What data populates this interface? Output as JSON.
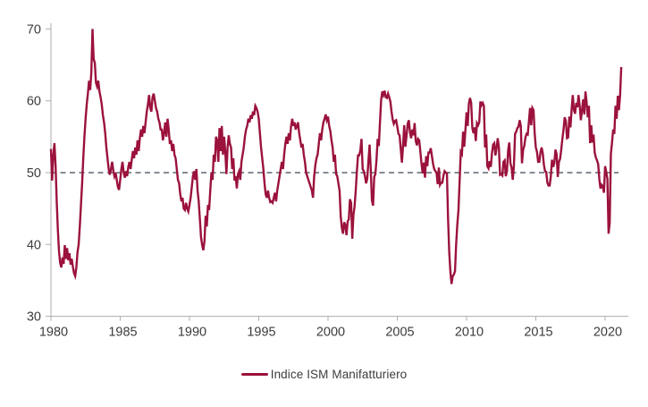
{
  "page": {
    "background": "#ffffff"
  },
  "chart_data": {
    "type": "line",
    "title": "",
    "legend": [
      "Indice ISM Manifatturiero"
    ],
    "legend_position": "bottom-center",
    "grid": false,
    "x_axis": {
      "tick_labels": [
        1980,
        1985,
        1990,
        1995,
        2000,
        2005,
        2010,
        2015,
        2020
      ],
      "range_years": [
        1980,
        2021.6
      ]
    },
    "y_axis": {
      "tick_labels": [
        30,
        40,
        50,
        60,
        70
      ],
      "range": [
        30,
        70
      ]
    },
    "reference_line": {
      "value": 50,
      "style": "dashed",
      "color": "#5b6570"
    },
    "axis_color": "#adadad",
    "label_color": "#3c3c3c",
    "series": [
      {
        "name": "Indice ISM Manifatturiero",
        "color": "#9b123c",
        "start": "1980-01",
        "frequency": "monthly",
        "values": [
          53.3,
          48.9,
          52.3,
          54.1,
          51.0,
          46.0,
          42.0,
          39.0,
          37.4,
          36.8,
          38.2,
          37.3,
          39.9,
          38.0,
          39.5,
          37.8,
          38.8,
          37.2,
          38.0,
          36.9,
          36.0,
          35.6,
          36.8,
          38.9,
          40.0,
          42.5,
          45.5,
          48.5,
          52.0,
          55.0,
          57.5,
          59.5,
          61.0,
          62.8,
          61.5,
          64.0,
          70.0,
          65.8,
          65.3,
          62.5,
          62.0,
          62.8,
          61.3,
          60.5,
          59.5,
          58.0,
          57.0,
          55.5,
          53.5,
          52.0,
          50.5,
          49.7,
          50.5,
          51.5,
          50.3,
          49.5,
          50.0,
          49.0,
          48.0,
          47.6,
          49.0,
          50.5,
          51.5,
          50.0,
          49.3,
          50.2,
          49.5,
          50.8,
          51.5,
          50.5,
          51.8,
          53.0,
          52.0,
          53.5,
          52.5,
          54.5,
          53.0,
          54.8,
          56.0,
          55.0,
          56.5,
          55.5,
          57.0,
          58.5,
          59.5,
          60.8,
          59.0,
          58.5,
          60.5,
          61.0,
          60.0,
          59.0,
          58.5,
          57.5,
          57.0,
          56.0,
          56.0,
          54.5,
          55.5,
          57.0,
          55.0,
          57.5,
          56.0,
          54.0,
          54.5,
          53.0,
          54.0,
          52.5,
          52.0,
          50.5,
          49.0,
          48.5,
          47.0,
          46.0,
          46.5,
          45.0,
          44.8,
          45.8,
          45.0,
          44.6,
          45.5,
          46.5,
          48.0,
          49.5,
          50.2,
          49.0,
          50.5,
          47.5,
          46.0,
          43.5,
          41.0,
          39.9,
          39.2,
          40.5,
          44.0,
          42.5,
          45.5,
          44.8,
          47.5,
          50.0,
          49.0,
          52.5,
          51.5,
          55.0,
          54.5,
          51.5,
          56.2,
          53.0,
          56.5,
          52.5,
          55.0,
          53.0,
          49.8,
          53.5,
          55.2,
          54.0,
          53.5,
          50.5,
          52.0,
          48.9,
          49.5,
          47.8,
          49.8,
          50.2,
          49.0,
          51.5,
          52.5,
          53.5,
          55.0,
          56.0,
          56.5,
          57.5,
          57.0,
          58.0,
          57.5,
          58.5,
          58.0,
          59.3,
          59.0,
          58.5,
          57.5,
          55.5,
          53.5,
          52.0,
          50.5,
          48.5,
          47.0,
          46.5,
          47.5,
          46.5,
          45.9,
          46.0,
          45.8,
          46.5,
          47.2,
          46.0,
          47.5,
          48.5,
          49.5,
          50.5,
          51.5,
          50.5,
          52.5,
          54.0,
          55.0,
          54.0,
          55.5,
          54.5,
          56.5,
          57.5,
          56.5,
          57.0,
          56.0,
          56.5,
          57.0,
          55.5,
          54.5,
          53.5,
          54.0,
          52.5,
          51.5,
          50.0,
          49.5,
          49.0,
          48.5,
          48.0,
          47.5,
          46.5,
          49.5,
          51.0,
          52.0,
          52.5,
          54.0,
          55.5,
          54.5,
          56.0,
          57.0,
          57.5,
          58.1,
          57.3,
          57.8,
          56.5,
          55.8,
          54.5,
          53.5,
          51.5,
          52.5,
          49.8,
          49.5,
          48.5,
          47.5,
          43.9,
          42.3,
          41.5,
          43.1,
          42.7,
          41.3,
          43.2,
          43.5,
          46.3,
          45.8,
          40.8,
          44.1,
          45.3,
          47.5,
          50.2,
          52.4,
          52.4,
          53.1,
          54.7,
          50.5,
          50.2,
          49.5,
          48.5,
          49.2,
          51.6,
          53.9,
          50.5,
          46.2,
          45.4,
          49.4,
          49.8,
          51.8,
          54.7,
          53.7,
          57.0,
          60.1,
          61.3,
          60.8,
          61.4,
          60.5,
          60.4,
          61.0,
          60.5,
          59.9,
          58.5,
          57.4,
          56.8,
          57.2,
          57.3,
          56.4,
          55.4,
          55.2,
          53.3,
          51.4,
          53.8,
          56.6,
          53.6,
          55.1,
          56.8,
          57.3,
          55.6,
          54.8,
          56.0,
          55.2,
          56.9,
          54.4,
          53.8,
          54.7,
          54.5,
          52.9,
          51.2,
          49.9,
          51.4,
          49.3,
          52.3,
          50.9,
          52.8,
          52.8,
          53.4,
          52.3,
          51.2,
          50.5,
          50.2,
          50.0,
          48.4,
          50.7,
          48.3,
          48.6,
          48.6,
          49.6,
          50.2,
          50.0,
          49.9,
          43.5,
          38.9,
          36.2,
          34.5,
          35.6,
          35.8,
          36.3,
          40.1,
          42.8,
          44.8,
          48.9,
          52.9,
          52.6,
          55.7,
          53.6,
          55.9,
          58.4,
          56.5,
          59.6,
          60.4,
          59.7,
          56.2,
          55.5,
          56.3,
          54.4,
          56.9,
          56.6,
          57.0,
          59.9,
          59.4,
          59.7,
          59.3,
          53.5,
          55.3,
          50.9,
          50.6,
          51.6,
          50.8,
          52.7,
          53.9,
          54.1,
          52.4,
          53.4,
          54.8,
          53.5,
          49.7,
          49.8,
          49.6,
          51.5,
          51.7,
          49.5,
          50.2,
          53.1,
          54.2,
          51.3,
          50.7,
          49.0,
          50.9,
          55.4,
          55.7,
          56.2,
          56.4,
          57.3,
          56.5,
          51.3,
          53.2,
          53.7,
          54.9,
          55.4,
          55.3,
          57.1,
          59.0,
          56.6,
          59.0,
          58.7,
          55.5,
          53.5,
          52.9,
          51.5,
          51.5,
          52.8,
          53.5,
          52.7,
          51.1,
          50.2,
          50.1,
          48.6,
          48.2,
          48.2,
          49.5,
          51.8,
          50.8,
          51.3,
          53.2,
          52.6,
          49.4,
          51.5,
          51.9,
          53.2,
          54.7,
          56.0,
          57.7,
          57.2,
          54.8,
          54.9,
          57.8,
          56.3,
          58.8,
          60.8,
          58.7,
          58.2,
          59.7,
          59.1,
          60.8,
          59.3,
          57.3,
          58.7,
          60.2,
          58.1,
          61.3,
          59.8,
          57.7,
          59.3,
          54.1,
          56.6,
          54.2,
          55.3,
          52.8,
          52.1,
          51.7,
          51.2,
          49.1,
          47.8,
          48.3,
          48.1,
          47.2,
          50.9,
          50.1,
          49.1,
          41.5,
          43.1,
          52.6,
          54.2,
          56.0,
          55.4,
          59.3,
          57.5,
          60.7,
          58.7,
          60.8,
          64.7
        ]
      }
    ]
  }
}
